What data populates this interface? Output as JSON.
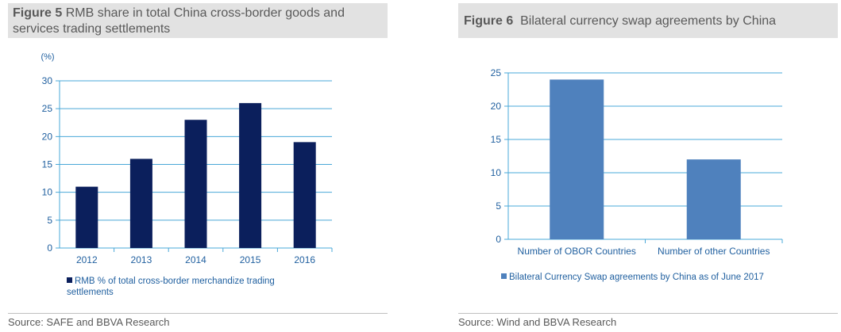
{
  "figures": [
    {
      "label": "Figure 5",
      "title": "RMB share in total China cross-border goods and services trading settlements",
      "unit_label": "(%)",
      "source": "Source: SAFE and BBVA Research",
      "colors": {
        "bar": "#0b1f5c",
        "grid": "#4aa8d8",
        "tick_text": "#1f5f9f"
      }
    },
    {
      "label": "Figure 6",
      "title": "Bilateral currency swap agreements by China",
      "source": "Source: Wind and BBVA Research",
      "colors": {
        "bar": "#4f81bd",
        "grid": "#4aa8d8",
        "tick_text": "#1f5f9f"
      }
    }
  ],
  "chart_data": [
    {
      "type": "bar",
      "categories": [
        "2012",
        "2013",
        "2014",
        "2015",
        "2016"
      ],
      "series": [
        {
          "name": "RMB % of total cross-border merchandize trading settlements",
          "values": [
            11,
            16,
            23,
            26,
            19
          ]
        }
      ],
      "title": "RMB share in total China cross-border goods and services trading settlements",
      "ylabel": "(%)",
      "ylim": [
        0,
        30
      ],
      "yticks": [
        0,
        5,
        10,
        15,
        20,
        25,
        30
      ],
      "grid": true,
      "legend": "bottom-left"
    },
    {
      "type": "bar",
      "categories": [
        "Number of OBOR Countries",
        "Number of other Countries"
      ],
      "series": [
        {
          "name": "Bilateral Currency Swap agreements by China as of June 2017",
          "values": [
            24,
            12
          ]
        }
      ],
      "title": "Bilateral currency swap agreements by China",
      "ylim": [
        0,
        25
      ],
      "yticks": [
        0,
        5,
        10,
        15,
        20,
        25
      ],
      "grid": true,
      "legend": "bottom-left"
    }
  ]
}
